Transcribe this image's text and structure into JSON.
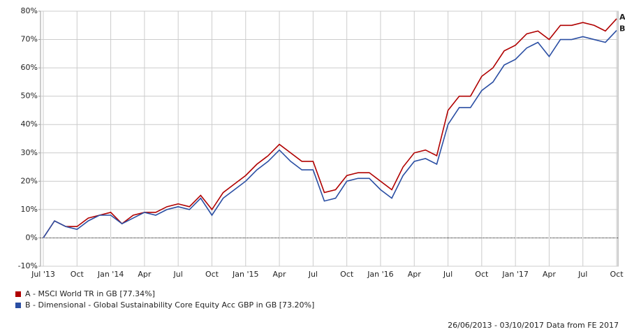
{
  "chart_data": {
    "type": "line",
    "categories": [
      "Jul '13",
      null,
      null,
      "Oct",
      null,
      null,
      "Jan '14",
      null,
      null,
      "Apr",
      null,
      null,
      "Jul",
      null,
      null,
      "Oct",
      null,
      null,
      "Jan '15",
      null,
      null,
      "Apr",
      null,
      null,
      "Jul",
      null,
      null,
      "Oct",
      null,
      null,
      "Jan '16",
      null,
      null,
      "Apr",
      null,
      null,
      "Jul",
      null,
      null,
      "Oct",
      null,
      null,
      "Jan '17",
      null,
      null,
      "Apr",
      null,
      null,
      "Jul",
      null,
      null,
      "Oct"
    ],
    "series": [
      {
        "name": "A - MSCI World TR in GB [77.34%]",
        "end_label": "A",
        "color": "#b00000",
        "values": [
          0,
          6,
          4,
          4,
          7,
          8,
          9,
          5,
          8,
          9,
          9,
          11,
          12,
          11,
          15,
          10,
          16,
          19,
          22,
          26,
          29,
          33,
          30,
          27,
          27,
          16,
          17,
          22,
          23,
          23,
          20,
          17,
          25,
          30,
          31,
          29,
          45,
          50,
          50,
          57,
          60,
          66,
          68,
          72,
          73,
          70,
          75,
          75,
          76,
          75,
          73,
          77.34
        ]
      },
      {
        "name": "B - Dimensional - Global Sustainability Core Equity Acc GBP in GB [73.20%]",
        "end_label": "B",
        "color": "#2a4ea3",
        "values": [
          0,
          6,
          4,
          3,
          6,
          8,
          8,
          5,
          7,
          9,
          8,
          10,
          11,
          10,
          14,
          8,
          14,
          17,
          20,
          24,
          27,
          31,
          27,
          24,
          24,
          13,
          14,
          20,
          21,
          21,
          17,
          14,
          22,
          27,
          28,
          26,
          40,
          46,
          46,
          52,
          55,
          61,
          63,
          67,
          69,
          64,
          70,
          70,
          71,
          70,
          69,
          73.2
        ]
      }
    ],
    "ylim": [
      -10,
      80
    ],
    "yticks": [
      {
        "value": -10,
        "label": "-10%"
      },
      {
        "value": 0,
        "label": "0%"
      },
      {
        "value": 10,
        "label": "10%"
      },
      {
        "value": 20,
        "label": "20%"
      },
      {
        "value": 30,
        "label": "30%"
      },
      {
        "value": 40,
        "label": "40%"
      },
      {
        "value": 50,
        "label": "50%"
      },
      {
        "value": 60,
        "label": "60%"
      },
      {
        "value": 70,
        "label": "70%"
      },
      {
        "value": 80,
        "label": "80%"
      }
    ],
    "grid": true,
    "footer": "26/06/2013 - 03/10/2017 Data from FE 2017"
  }
}
